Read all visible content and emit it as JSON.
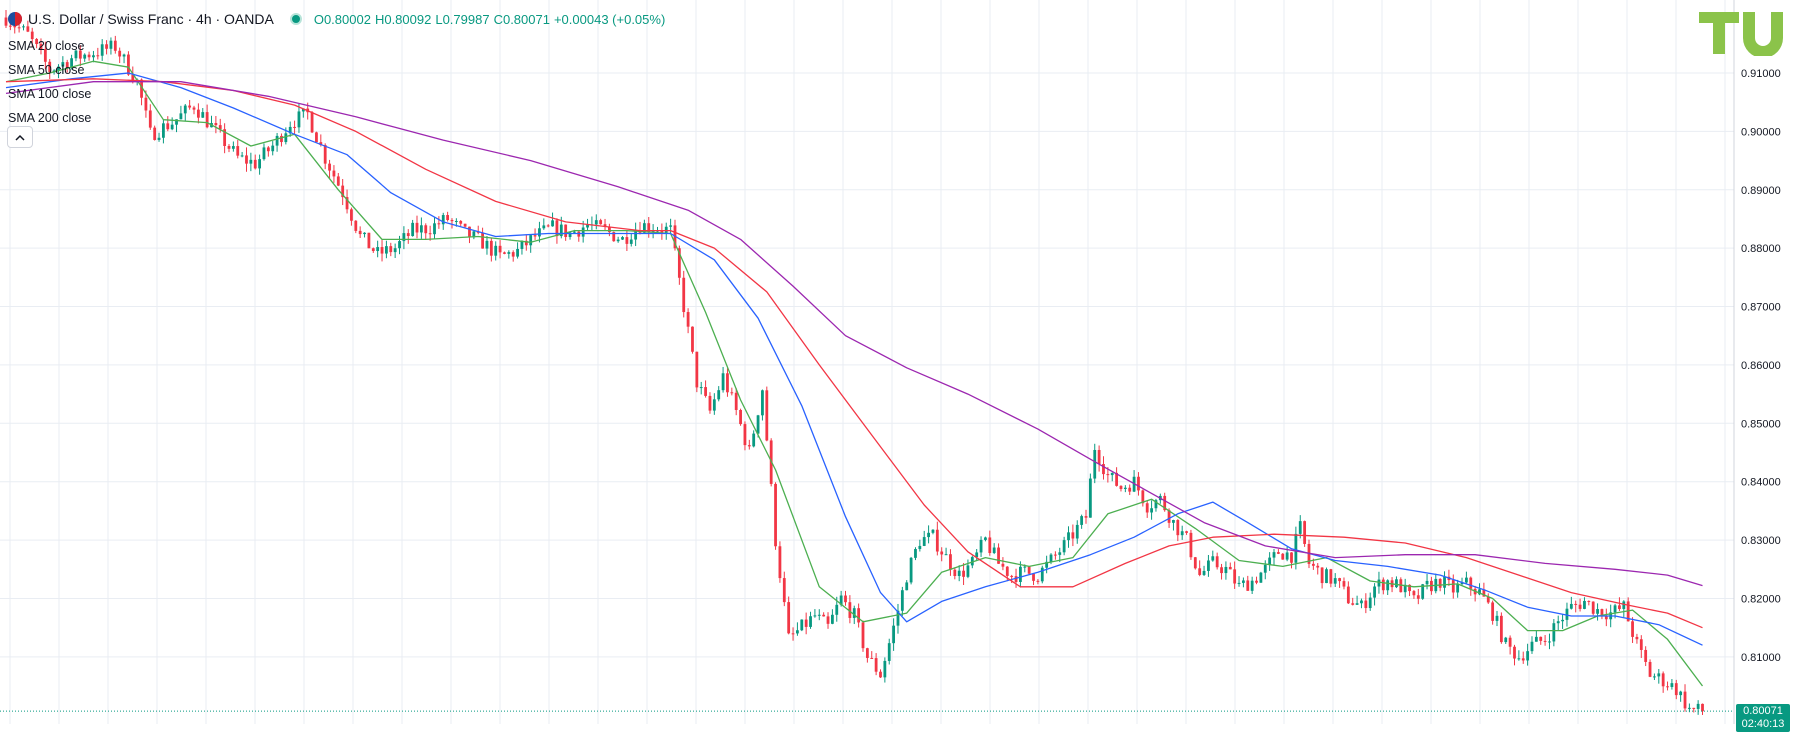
{
  "header": {
    "symbol": "U.S. Dollar / Swiss Franc · 4h · OANDA",
    "open_label": "O",
    "open": "0.80002",
    "high_label": "H",
    "high": "0.80092",
    "low_label": "L",
    "low": "0.79987",
    "close_label": "C",
    "close": "0.80071",
    "change": "+0.00043 (+0.05%)"
  },
  "indicators": [
    "SMA 20 close",
    "SMA 50 close",
    "SMA 100 close",
    "SMA 200 close"
  ],
  "collapse_icon": "chevron-up-icon",
  "logo_text": "TU",
  "last_price_label": {
    "price": "0.80071",
    "countdown": "02:40:13"
  },
  "colors": {
    "up": "#089981",
    "down": "#f23645",
    "sma20": "#4caf50",
    "sma50": "#2962ff",
    "sma100": "#f23645",
    "sma200": "#9c27b0",
    "grid": "#e9edf3",
    "logo": "#8bc34a"
  },
  "chart_data": {
    "type": "candlestick",
    "title": "U.S. Dollar / Swiss Franc · 4h · OANDA",
    "ylim": [
      0.7985,
      0.9225
    ],
    "y_ticks": [
      "0.91000",
      "0.90000",
      "0.89000",
      "0.88000",
      "0.87000",
      "0.86000",
      "0.85000",
      "0.84000",
      "0.83000",
      "0.82000",
      "0.81000"
    ],
    "last_price": 0.80071,
    "grid": true,
    "close_path": [
      [
        0,
        0.9195
      ],
      [
        5,
        0.9165
      ],
      [
        10,
        0.9105
      ],
      [
        15,
        0.9125
      ],
      [
        20,
        0.9135
      ],
      [
        25,
        0.9145
      ],
      [
        30,
        0.9085
      ],
      [
        33,
        0.8995
      ],
      [
        38,
        0.9015
      ],
      [
        43,
        0.9045
      ],
      [
        48,
        0.9
      ],
      [
        53,
        0.8955
      ],
      [
        57,
        0.8945
      ],
      [
        61,
        0.8975
      ],
      [
        65,
        0.9015
      ],
      [
        69,
        0.903
      ],
      [
        73,
        0.8955
      ],
      [
        77,
        0.8895
      ],
      [
        81,
        0.882
      ],
      [
        85,
        0.879
      ],
      [
        89,
        0.88
      ],
      [
        93,
        0.883
      ],
      [
        97,
        0.8835
      ],
      [
        101,
        0.885
      ],
      [
        105,
        0.8825
      ],
      [
        109,
        0.881
      ],
      [
        113,
        0.8785
      ],
      [
        117,
        0.8795
      ],
      [
        121,
        0.882
      ],
      [
        125,
        0.8835
      ],
      [
        129,
        0.8825
      ],
      [
        133,
        0.884
      ],
      [
        137,
        0.883
      ],
      [
        141,
        0.8815
      ],
      [
        145,
        0.884
      ],
      [
        149,
        0.8835
      ],
      [
        152,
        0.883
      ],
      [
        155,
        0.87
      ],
      [
        158,
        0.857
      ],
      [
        161,
        0.852
      ],
      [
        164,
        0.858
      ],
      [
        167,
        0.852
      ],
      [
        170,
        0.845
      ],
      [
        173,
        0.856
      ],
      [
        176,
        0.83
      ],
      [
        179,
        0.813
      ],
      [
        182,
        0.815
      ],
      [
        185,
        0.817
      ],
      [
        188,
        0.815
      ],
      [
        191,
        0.82
      ],
      [
        194,
        0.817
      ],
      [
        197,
        0.81
      ],
      [
        200,
        0.807
      ],
      [
        203,
        0.815
      ],
      [
        206,
        0.824
      ],
      [
        209,
        0.83
      ],
      [
        212,
        0.8305
      ],
      [
        215,
        0.827
      ],
      [
        218,
        0.824
      ],
      [
        221,
        0.826
      ],
      [
        224,
        0.83
      ],
      [
        227,
        0.826
      ],
      [
        230,
        0.824
      ],
      [
        233,
        0.8245
      ],
      [
        236,
        0.824
      ],
      [
        239,
        0.8265
      ],
      [
        242,
        0.829
      ],
      [
        245,
        0.832
      ],
      [
        247,
        0.834
      ],
      [
        249,
        0.846
      ],
      [
        252,
        0.841
      ],
      [
        255,
        0.839
      ],
      [
        258,
        0.84
      ],
      [
        261,
        0.836
      ],
      [
        264,
        0.837
      ],
      [
        267,
        0.833
      ],
      [
        270,
        0.83
      ],
      [
        273,
        0.824
      ],
      [
        276,
        0.826
      ],
      [
        279,
        0.825
      ],
      [
        282,
        0.822
      ],
      [
        285,
        0.823
      ],
      [
        288,
        0.825
      ],
      [
        291,
        0.828
      ],
      [
        294,
        0.8275
      ],
      [
        296,
        0.832
      ],
      [
        298,
        0.826
      ],
      [
        301,
        0.824
      ],
      [
        304,
        0.823
      ],
      [
        307,
        0.82
      ],
      [
        310,
        0.8185
      ],
      [
        313,
        0.822
      ],
      [
        316,
        0.823
      ],
      [
        319,
        0.822
      ],
      [
        322,
        0.8195
      ],
      [
        325,
        0.822
      ],
      [
        328,
        0.823
      ],
      [
        331,
        0.8215
      ],
      [
        334,
        0.8225
      ],
      [
        337,
        0.821
      ],
      [
        340,
        0.8175
      ],
      [
        343,
        0.812
      ],
      [
        346,
        0.81
      ],
      [
        349,
        0.812
      ],
      [
        352,
        0.813
      ],
      [
        355,
        0.816
      ],
      [
        358,
        0.8185
      ],
      [
        361,
        0.8195
      ],
      [
        364,
        0.818
      ],
      [
        367,
        0.8175
      ],
      [
        370,
        0.8185
      ],
      [
        373,
        0.812
      ],
      [
        376,
        0.807
      ],
      [
        379,
        0.806
      ],
      [
        382,
        0.8045
      ],
      [
        385,
        0.801
      ],
      [
        388,
        0.8007
      ]
    ],
    "series": [
      {
        "name": "SMA 20 close",
        "points": [
          [
            0,
            0.9085
          ],
          [
            10,
            0.91
          ],
          [
            20,
            0.912
          ],
          [
            28,
            0.911
          ],
          [
            36,
            0.902
          ],
          [
            46,
            0.9015
          ],
          [
            56,
            0.8975
          ],
          [
            66,
            0.8995
          ],
          [
            76,
            0.89
          ],
          [
            86,
            0.8815
          ],
          [
            96,
            0.8815
          ],
          [
            108,
            0.882
          ],
          [
            120,
            0.881
          ],
          [
            130,
            0.883
          ],
          [
            142,
            0.883
          ],
          [
            152,
            0.8825
          ],
          [
            160,
            0.869
          ],
          [
            168,
            0.854
          ],
          [
            176,
            0.842
          ],
          [
            186,
            0.822
          ],
          [
            196,
            0.816
          ],
          [
            206,
            0.8175
          ],
          [
            214,
            0.8245
          ],
          [
            224,
            0.827
          ],
          [
            234,
            0.8255
          ],
          [
            244,
            0.827
          ],
          [
            252,
            0.8345
          ],
          [
            262,
            0.837
          ],
          [
            272,
            0.832
          ],
          [
            282,
            0.8265
          ],
          [
            292,
            0.8255
          ],
          [
            302,
            0.827
          ],
          [
            312,
            0.823
          ],
          [
            322,
            0.822
          ],
          [
            332,
            0.8225
          ],
          [
            340,
            0.82
          ],
          [
            348,
            0.8145
          ],
          [
            356,
            0.8145
          ],
          [
            364,
            0.817
          ],
          [
            372,
            0.818
          ],
          [
            380,
            0.813
          ],
          [
            388,
            0.805
          ]
        ]
      },
      {
        "name": "SMA 50 close",
        "points": [
          [
            0,
            0.9075
          ],
          [
            15,
            0.909
          ],
          [
            28,
            0.91
          ],
          [
            40,
            0.9075
          ],
          [
            52,
            0.904
          ],
          [
            66,
            0.8995
          ],
          [
            78,
            0.896
          ],
          [
            88,
            0.8895
          ],
          [
            100,
            0.8845
          ],
          [
            112,
            0.882
          ],
          [
            124,
            0.8825
          ],
          [
            140,
            0.8825
          ],
          [
            152,
            0.8825
          ],
          [
            162,
            0.878
          ],
          [
            172,
            0.868
          ],
          [
            182,
            0.853
          ],
          [
            192,
            0.834
          ],
          [
            200,
            0.821
          ],
          [
            206,
            0.816
          ],
          [
            214,
            0.8195
          ],
          [
            224,
            0.822
          ],
          [
            236,
            0.8245
          ],
          [
            248,
            0.8275
          ],
          [
            258,
            0.8305
          ],
          [
            268,
            0.8345
          ],
          [
            276,
            0.8365
          ],
          [
            284,
            0.833
          ],
          [
            294,
            0.8285
          ],
          [
            304,
            0.8265
          ],
          [
            316,
            0.8255
          ],
          [
            328,
            0.824
          ],
          [
            338,
            0.8215
          ],
          [
            348,
            0.8185
          ],
          [
            358,
            0.817
          ],
          [
            368,
            0.817
          ],
          [
            378,
            0.8155
          ],
          [
            388,
            0.812
          ]
        ]
      },
      {
        "name": "SMA 100 close",
        "points": [
          [
            0,
            0.9085
          ],
          [
            20,
            0.909
          ],
          [
            36,
            0.9085
          ],
          [
            52,
            0.907
          ],
          [
            66,
            0.9045
          ],
          [
            80,
            0.9
          ],
          [
            96,
            0.8935
          ],
          [
            112,
            0.888
          ],
          [
            128,
            0.8845
          ],
          [
            145,
            0.883
          ],
          [
            152,
            0.883
          ],
          [
            162,
            0.88
          ],
          [
            174,
            0.8725
          ],
          [
            186,
            0.86
          ],
          [
            198,
            0.848
          ],
          [
            210,
            0.836
          ],
          [
            220,
            0.828
          ],
          [
            232,
            0.822
          ],
          [
            244,
            0.822
          ],
          [
            256,
            0.826
          ],
          [
            266,
            0.829
          ],
          [
            276,
            0.8305
          ],
          [
            290,
            0.831
          ],
          [
            306,
            0.8305
          ],
          [
            320,
            0.8295
          ],
          [
            334,
            0.827
          ],
          [
            346,
            0.824
          ],
          [
            358,
            0.821
          ],
          [
            370,
            0.819
          ],
          [
            380,
            0.8175
          ],
          [
            388,
            0.815
          ]
        ]
      },
      {
        "name": "SMA 200 close",
        "points": [
          [
            0,
            0.9065
          ],
          [
            20,
            0.9085
          ],
          [
            40,
            0.9085
          ],
          [
            60,
            0.906
          ],
          [
            80,
            0.9025
          ],
          [
            100,
            0.8985
          ],
          [
            120,
            0.895
          ],
          [
            140,
            0.8905
          ],
          [
            156,
            0.8865
          ],
          [
            168,
            0.8815
          ],
          [
            180,
            0.8735
          ],
          [
            192,
            0.865
          ],
          [
            206,
            0.8595
          ],
          [
            220,
            0.855
          ],
          [
            236,
            0.849
          ],
          [
            250,
            0.843
          ],
          [
            262,
            0.838
          ],
          [
            274,
            0.833
          ],
          [
            288,
            0.829
          ],
          [
            304,
            0.827
          ],
          [
            320,
            0.8275
          ],
          [
            336,
            0.8275
          ],
          [
            352,
            0.826
          ],
          [
            368,
            0.825
          ],
          [
            380,
            0.824
          ],
          [
            388,
            0.8222
          ]
        ]
      }
    ]
  }
}
